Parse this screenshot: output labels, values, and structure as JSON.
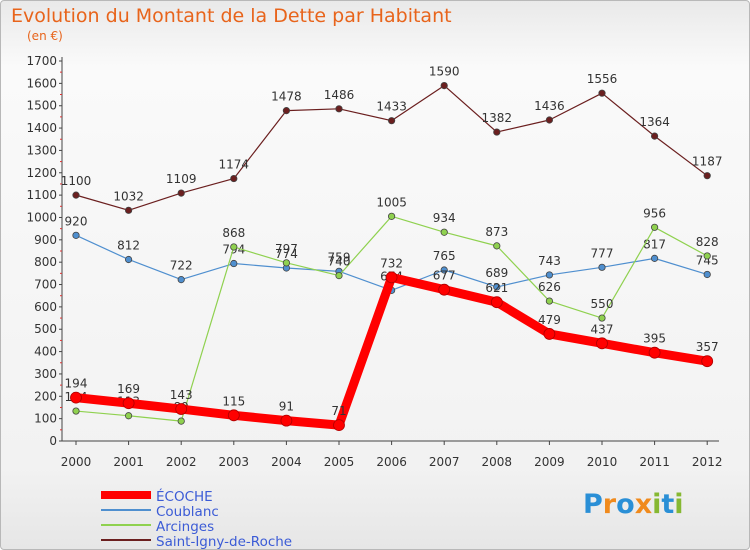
{
  "chart_data": {
    "type": "line",
    "title": "Evolution du Montant de la Dette par Habitant",
    "subtitle": "(en €)",
    "xlabel": "",
    "ylabel": "",
    "ylim": [
      0,
      1700
    ],
    "yticks": [
      "0",
      "100",
      "200",
      "300",
      "400",
      "500",
      "600",
      "700",
      "800",
      "900",
      "1000",
      "1100",
      "1200",
      "1300",
      "1400",
      "1500",
      "1600",
      "1700"
    ],
    "categories": [
      "2000",
      "2001",
      "2002",
      "2003",
      "2004",
      "2005",
      "2006",
      "2007",
      "2008",
      "2009",
      "2010",
      "2011",
      "2012"
    ],
    "grid": false,
    "legend_position": "bottom-left",
    "series": [
      {
        "name": "Saint-Igny-de-Roche",
        "color": "#6b1f1f",
        "values": [
          1100,
          1032,
          1109,
          1174,
          1478,
          1486,
          1433,
          1590,
          1382,
          1436,
          1556,
          1364,
          1187
        ]
      },
      {
        "name": "Coublanc",
        "color": "#4f8fcf",
        "values": [
          920,
          812,
          722,
          794,
          774,
          759,
          674,
          765,
          689,
          743,
          777,
          817,
          745
        ]
      },
      {
        "name": "Arcinges",
        "color": "#8fd14f",
        "values": [
          134,
          113,
          89,
          868,
          797,
          740,
          1005,
          934,
          873,
          626,
          550,
          956,
          828
        ]
      },
      {
        "name": "ÉCOCHE",
        "color": "#ff0000",
        "values": [
          194,
          169,
          143,
          115,
          91,
          71,
          732,
          677,
          621,
          479,
          437,
          395,
          357
        ]
      }
    ],
    "data_labels": [
      [
        "1100",
        "1032",
        "1109",
        "1174",
        "1478",
        "1486",
        "1433",
        "1590",
        "1382",
        "1436",
        "1556",
        "1364",
        "1187"
      ],
      [
        "920",
        "812",
        "722",
        "794",
        "774",
        "759",
        "674",
        "765",
        "689",
        "743",
        "777",
        "817",
        "745"
      ],
      [
        "134",
        "113",
        "89",
        "868",
        "797",
        "740",
        "1005",
        "934",
        "873",
        "626",
        "550",
        "956",
        "828"
      ],
      [
        "194",
        "169",
        "143",
        "115",
        "91",
        "71",
        "732",
        "677",
        "621",
        "479",
        "437",
        "395",
        "357"
      ]
    ]
  },
  "legend": {
    "items": [
      {
        "label": "ÉCOCHE",
        "color": "#ff0000"
      },
      {
        "label": "Coublanc",
        "color": "#4f8fcf"
      },
      {
        "label": "Arcinges",
        "color": "#8fd14f"
      },
      {
        "label": "Saint-Igny-de-Roche",
        "color": "#6b1f1f"
      }
    ]
  },
  "logo": {
    "text": "Proxiti",
    "letters": [
      "P",
      "r",
      "o",
      "x",
      "i",
      "t",
      "i"
    ],
    "colors": [
      "#2a8fd6",
      "#f08a1c",
      "#2a8fd6",
      "#f08a1c",
      "#86b832",
      "#2a8fd6",
      "#86b832"
    ]
  }
}
